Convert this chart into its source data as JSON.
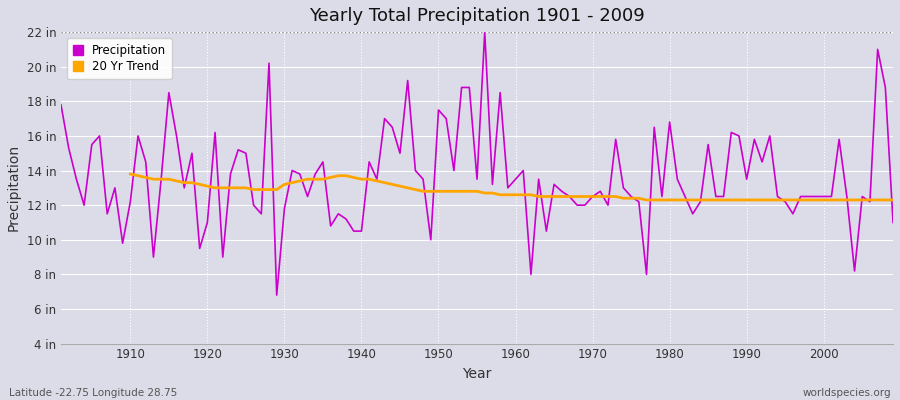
{
  "title": "Yearly Total Precipitation 1901 - 2009",
  "xlabel": "Year",
  "ylabel": "Precipitation",
  "subtitle_left": "Latitude -22.75 Longitude 28.75",
  "subtitle_right": "worldspecies.org",
  "line_color": "#CC00CC",
  "trend_color": "#FFA500",
  "bg_color": "#DCDCE8",
  "ylim": [
    4,
    22
  ],
  "yticks": [
    4,
    6,
    8,
    10,
    12,
    14,
    16,
    18,
    20,
    22
  ],
  "ytick_labels": [
    "4 in",
    "6 in",
    "8 in",
    "10 in",
    "12 in",
    "14 in",
    "16 in",
    "18 in",
    "20 in",
    "22 in"
  ],
  "xlim": [
    1901,
    2009
  ],
  "xtick_vals": [
    1910,
    1920,
    1930,
    1940,
    1950,
    1960,
    1970,
    1980,
    1990,
    2000
  ],
  "years": [
    1901,
    1902,
    1903,
    1904,
    1905,
    1906,
    1907,
    1908,
    1909,
    1910,
    1911,
    1912,
    1913,
    1914,
    1915,
    1916,
    1917,
    1918,
    1919,
    1920,
    1921,
    1922,
    1923,
    1924,
    1925,
    1926,
    1927,
    1928,
    1929,
    1930,
    1931,
    1932,
    1933,
    1934,
    1935,
    1936,
    1937,
    1938,
    1939,
    1940,
    1941,
    1942,
    1943,
    1944,
    1945,
    1946,
    1947,
    1948,
    1949,
    1950,
    1951,
    1952,
    1953,
    1954,
    1955,
    1956,
    1957,
    1958,
    1959,
    1960,
    1961,
    1962,
    1963,
    1964,
    1965,
    1966,
    1967,
    1968,
    1969,
    1970,
    1971,
    1972,
    1973,
    1974,
    1975,
    1976,
    1977,
    1978,
    1979,
    1980,
    1981,
    1982,
    1983,
    1984,
    1985,
    1986,
    1987,
    1988,
    1989,
    1990,
    1991,
    1992,
    1993,
    1994,
    1995,
    1996,
    1997,
    1998,
    1999,
    2000,
    2001,
    2002,
    2003,
    2004,
    2005,
    2006,
    2007,
    2008,
    2009
  ],
  "precip": [
    17.8,
    15.3,
    13.5,
    12.0,
    15.5,
    16.0,
    11.5,
    13.0,
    9.8,
    12.2,
    16.0,
    14.5,
    9.0,
    13.5,
    18.5,
    16.0,
    13.0,
    15.0,
    9.5,
    11.0,
    16.2,
    9.0,
    13.8,
    15.2,
    15.0,
    12.0,
    11.5,
    20.2,
    6.8,
    11.8,
    14.0,
    13.8,
    12.5,
    13.8,
    14.5,
    10.8,
    11.5,
    11.2,
    10.5,
    10.5,
    14.5,
    13.5,
    17.0,
    16.5,
    15.0,
    19.2,
    14.0,
    13.5,
    10.0,
    17.5,
    17.0,
    14.0,
    18.8,
    18.8,
    13.5,
    22.0,
    13.2,
    18.5,
    13.0,
    13.5,
    14.0,
    8.0,
    13.5,
    10.5,
    13.2,
    12.8,
    12.5,
    12.0,
    12.0,
    12.5,
    12.8,
    12.0,
    15.8,
    13.0,
    12.5,
    12.2,
    8.0,
    16.5,
    12.5,
    16.8,
    13.5,
    12.5,
    11.5,
    12.2,
    15.5,
    12.5,
    12.5,
    16.2,
    16.0,
    13.5,
    15.8,
    14.5,
    16.0,
    12.5,
    12.2,
    11.5,
    12.5,
    12.5,
    12.5,
    12.5,
    12.5,
    15.8,
    12.5,
    8.2,
    12.5,
    12.2,
    21.0,
    18.8,
    11.0
  ],
  "trend_years": [
    1910,
    1911,
    1912,
    1913,
    1914,
    1915,
    1916,
    1917,
    1918,
    1919,
    1920,
    1921,
    1922,
    1923,
    1924,
    1925,
    1926,
    1927,
    1928,
    1929,
    1930,
    1931,
    1932,
    1933,
    1934,
    1935,
    1936,
    1937,
    1938,
    1939,
    1940,
    1941,
    1942,
    1943,
    1944,
    1945,
    1946,
    1947,
    1948,
    1949,
    1950,
    1951,
    1952,
    1953,
    1954,
    1955,
    1956,
    1957,
    1958,
    1959,
    1960,
    1961,
    1962,
    1963,
    1964,
    1965,
    1966,
    1967,
    1968,
    1969,
    1970,
    1971,
    1972,
    1973,
    1974,
    1975,
    1976,
    1977,
    1978,
    1979,
    1980,
    1981,
    1982,
    1983,
    1984,
    1985,
    1986,
    1987,
    1988,
    1989,
    1990,
    1991,
    1992,
    1993,
    1994,
    1995,
    1996,
    1997,
    1998,
    1999,
    2000,
    2001,
    2002,
    2003,
    2004,
    2005,
    2006,
    2007,
    2008,
    2009
  ],
  "trend": [
    13.8,
    13.7,
    13.6,
    13.5,
    13.5,
    13.5,
    13.4,
    13.3,
    13.3,
    13.2,
    13.1,
    13.0,
    13.0,
    13.0,
    13.0,
    13.0,
    12.9,
    12.9,
    12.9,
    12.9,
    13.2,
    13.3,
    13.4,
    13.5,
    13.5,
    13.5,
    13.6,
    13.7,
    13.7,
    13.6,
    13.5,
    13.5,
    13.4,
    13.3,
    13.2,
    13.1,
    13.0,
    12.9,
    12.8,
    12.8,
    12.8,
    12.8,
    12.8,
    12.8,
    12.8,
    12.8,
    12.7,
    12.7,
    12.6,
    12.6,
    12.6,
    12.6,
    12.6,
    12.5,
    12.5,
    12.5,
    12.5,
    12.5,
    12.5,
    12.5,
    12.5,
    12.5,
    12.5,
    12.5,
    12.4,
    12.4,
    12.4,
    12.3,
    12.3,
    12.3,
    12.3,
    12.3,
    12.3,
    12.3,
    12.3,
    12.3,
    12.3,
    12.3,
    12.3,
    12.3,
    12.3,
    12.3,
    12.3,
    12.3,
    12.3,
    12.3,
    12.3,
    12.3,
    12.3,
    12.3,
    12.3,
    12.3,
    12.3,
    12.3,
    12.3,
    12.3,
    12.3,
    12.3,
    12.3,
    12.3
  ]
}
